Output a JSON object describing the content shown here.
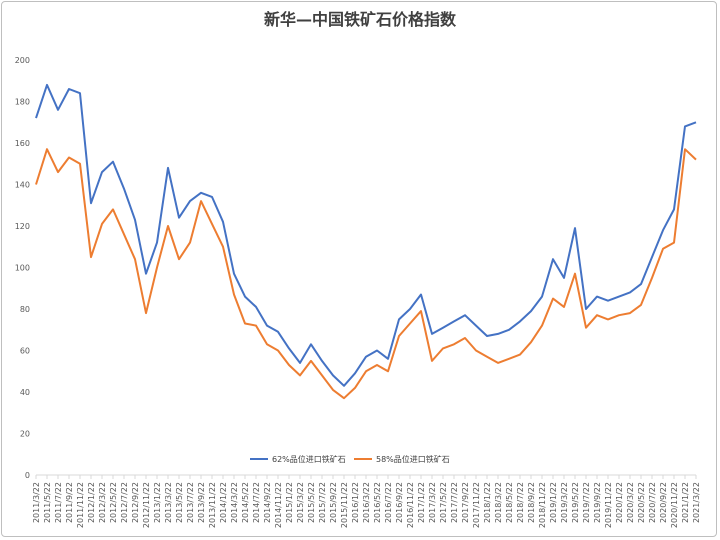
{
  "chart_data": {
    "type": "line",
    "title": "新华—中国铁矿石价格指数",
    "xlabel": "",
    "ylabel": "",
    "ylim": [
      0,
      200
    ],
    "yticks": [
      0,
      20,
      40,
      60,
      80,
      100,
      120,
      140,
      160,
      180,
      200
    ],
    "grid": false,
    "legend_position": "bottom-center",
    "x_tick_labels": [
      "2011/3/22",
      "2011/5/22",
      "2011/7/22",
      "2011/9/22",
      "2011/11/22",
      "2012/1/22",
      "2012/3/22",
      "2012/5/22",
      "2012/7/22",
      "2012/9/22",
      "2012/11/22",
      "2013/1/22",
      "2013/3/22",
      "2013/5/22",
      "2013/7/22",
      "2013/9/22",
      "2013/11/22",
      "2014/1/22",
      "2014/3/22",
      "2014/5/22",
      "2014/7/22",
      "2014/9/22",
      "2014/11/22",
      "2015/1/22",
      "2015/3/22",
      "2015/5/22",
      "2015/7/22",
      "2015/9/22",
      "2015/11/22",
      "2016/1/22",
      "2016/3/22",
      "2016/5/22",
      "2016/7/22",
      "2016/9/22",
      "2016/11/22",
      "2017/1/22",
      "2017/3/22",
      "2017/5/22",
      "2017/7/22",
      "2017/9/22",
      "2017/11/22",
      "2018/1/22",
      "2018/3/22",
      "2018/5/22",
      "2018/7/22",
      "2018/9/22",
      "2018/11/22",
      "2019/1/22",
      "2019/3/22",
      "2019/5/22",
      "2019/7/22",
      "2019/9/22",
      "2019/11/22",
      "2020/1/22",
      "2020/3/22",
      "2020/5/22",
      "2020/7/22",
      "2020/9/22",
      "2020/11/22",
      "2021/1/22",
      "2021/3/22"
    ],
    "x_dates": [
      "2011-03-22",
      "2011-05-22",
      "2011-07-22",
      "2011-09-22",
      "2011-11-22",
      "2012-01-22",
      "2012-03-22",
      "2012-05-22",
      "2012-07-22",
      "2012-09-22",
      "2012-11-22",
      "2013-01-22",
      "2013-03-22",
      "2013-05-22",
      "2013-07-22",
      "2013-09-22",
      "2013-11-22",
      "2014-01-22",
      "2014-03-22",
      "2014-05-22",
      "2014-07-22",
      "2014-09-22",
      "2014-11-22",
      "2015-01-22",
      "2015-03-22",
      "2015-05-22",
      "2015-07-22",
      "2015-09-22",
      "2015-11-22",
      "2016-01-22",
      "2016-03-22",
      "2016-05-22",
      "2016-07-22",
      "2016-09-22",
      "2016-11-22",
      "2017-01-22",
      "2017-03-22",
      "2017-05-22",
      "2017-07-22",
      "2017-09-22",
      "2017-11-22",
      "2018-01-22",
      "2018-03-22",
      "2018-05-22",
      "2018-07-22",
      "2018-09-22",
      "2018-11-22",
      "2019-01-22",
      "2019-03-22",
      "2019-05-22",
      "2019-07-22",
      "2019-09-22",
      "2019-11-22",
      "2020-01-22",
      "2020-03-22",
      "2020-05-22",
      "2020-07-22",
      "2020-09-22",
      "2020-11-22",
      "2021-01-22",
      "2021-03-22"
    ],
    "series": [
      {
        "name": "62%品位进口铁矿石",
        "color": "#4472c4",
        "values": [
          172,
          188,
          176,
          186,
          184,
          131,
          146,
          151,
          138,
          123,
          97,
          112,
          148,
          124,
          132,
          136,
          134,
          122,
          97,
          86,
          81,
          72,
          69,
          61,
          54,
          63,
          55,
          48,
          43,
          49,
          57,
          60,
          56,
          75,
          80,
          87,
          68,
          71,
          74,
          77,
          72,
          67,
          68,
          70,
          74,
          79,
          86,
          104,
          95,
          119,
          80,
          86,
          84,
          86,
          88,
          92,
          105,
          118,
          128,
          168,
          170
        ]
      },
      {
        "name": "58%品位进口铁矿石",
        "color": "#ed7d31",
        "values": [
          140,
          157,
          146,
          153,
          150,
          105,
          121,
          128,
          116,
          104,
          78,
          100,
          120,
          104,
          112,
          132,
          121,
          110,
          87,
          73,
          72,
          63,
          60,
          53,
          48,
          55,
          48,
          41,
          37,
          42,
          50,
          53,
          50,
          67,
          73,
          79,
          55,
          61,
          63,
          66,
          60,
          57,
          54,
          56,
          58,
          64,
          72,
          85,
          81,
          97,
          71,
          77,
          75,
          77,
          78,
          82,
          95,
          109,
          112,
          157,
          152
        ]
      }
    ]
  }
}
